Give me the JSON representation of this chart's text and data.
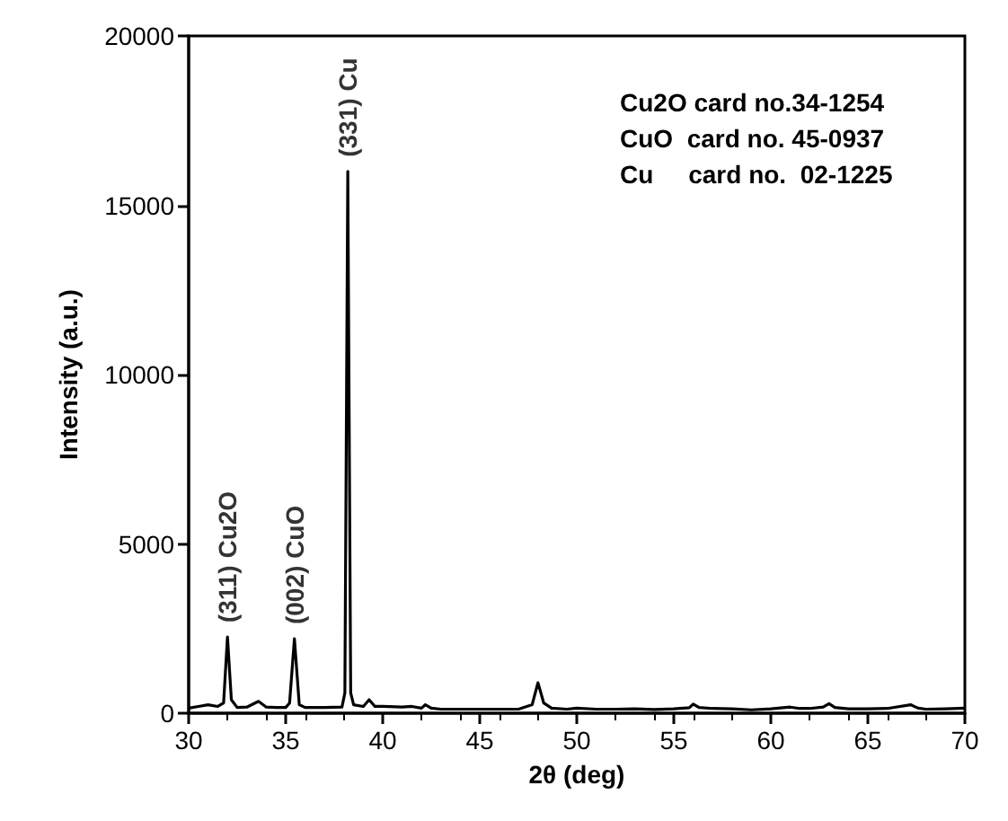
{
  "chart_data": {
    "type": "line",
    "xlabel": "2θ (deg)",
    "ylabel": "Intensity (a.u.)",
    "xlim": [
      30,
      70
    ],
    "xticks": [
      30,
      35,
      40,
      45,
      50,
      55,
      60,
      65,
      70
    ],
    "ylim": [
      0,
      20000
    ],
    "yticks": [
      0,
      5000,
      10000,
      15000,
      20000
    ],
    "grid": false,
    "marker": "none",
    "line_style": "solid",
    "series": [
      {
        "color": "#000000",
        "x": [
          30,
          30.5,
          31,
          31.5,
          31.8,
          32.0,
          32.2,
          32.5,
          33,
          33.6,
          34,
          34.5,
          35,
          35.2,
          35.45,
          35.7,
          36,
          37,
          37.9,
          38.05,
          38.2,
          38.35,
          38.5,
          39,
          39.3,
          39.6,
          40,
          41,
          41.5,
          42,
          42.2,
          42.5,
          43,
          44,
          45,
          46,
          47,
          47.7,
          48.0,
          48.3,
          48.7,
          49.5,
          50,
          51,
          52,
          53,
          54,
          55,
          55.8,
          56,
          56.3,
          57,
          58,
          59,
          60,
          61,
          61.5,
          62,
          62.7,
          63,
          63.3,
          64,
          65,
          66,
          67.2,
          67.6,
          68,
          69,
          70
        ],
        "values": [
          150,
          200,
          250,
          200,
          300,
          2250,
          400,
          170,
          180,
          350,
          180,
          170,
          170,
          300,
          2200,
          250,
          170,
          170,
          180,
          600,
          16000,
          600,
          250,
          200,
          400,
          200,
          200,
          180,
          200,
          150,
          250,
          150,
          120,
          120,
          120,
          120,
          120,
          250,
          900,
          300,
          150,
          120,
          150,
          120,
          120,
          130,
          110,
          130,
          160,
          270,
          170,
          140,
          130,
          100,
          130,
          180,
          140,
          140,
          180,
          280,
          170,
          130,
          130,
          140,
          250,
          150,
          120,
          130,
          150
        ]
      }
    ],
    "annotations": [
      {
        "text": "(311) Cu2O",
        "x": 32.0,
        "y": 2250
      },
      {
        "text": "(002) CuO",
        "x": 35.45,
        "y": 2200
      },
      {
        "text": "(331) Cu",
        "x": 38.2,
        "y": 16000
      },
      "Cu2O card no.34-1254",
      "CuO  card no. 45-0937",
      "Cu     card no.  02-1225"
    ]
  }
}
